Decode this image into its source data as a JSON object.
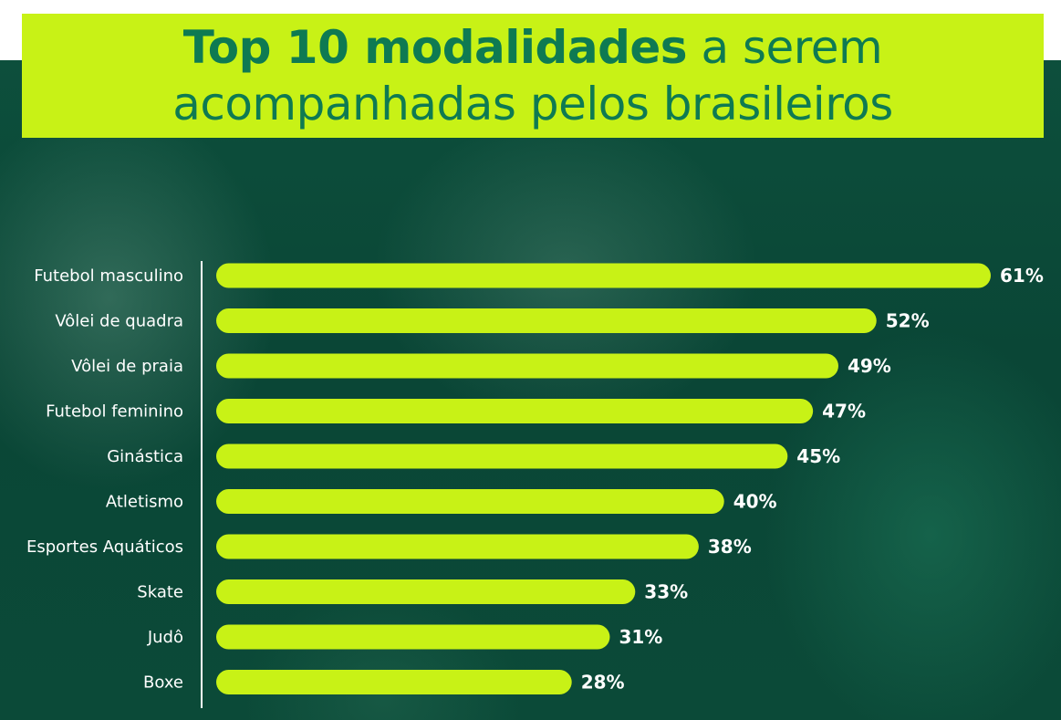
{
  "title": {
    "line1_bold": "Top 10 modalidades",
    "line1_rest": " a serem",
    "line2": "acompanhadas pelos brasileiros"
  },
  "colors": {
    "bar": "#c8f216",
    "background": "#0b4a38",
    "title_text": "#0e7a52",
    "labels": "#ffffff"
  },
  "chart_data": {
    "type": "bar",
    "orientation": "horizontal",
    "title": "Top 10 modalidades a serem acompanhadas pelos brasileiros",
    "categories": [
      "Futebol masculino",
      "Vôlei de quadra",
      "Vôlei de praia",
      "Futebol feminino",
      "Ginástica",
      "Atletismo",
      "Esportes Aquáticos",
      "Skate",
      "Judô",
      "Boxe"
    ],
    "values": [
      61,
      52,
      49,
      47,
      45,
      40,
      38,
      33,
      31,
      28
    ],
    "value_labels": [
      "61%",
      "52%",
      "49%",
      "47%",
      "45%",
      "40%",
      "38%",
      "33%",
      "31%",
      "28%"
    ],
    "xlim": [
      0,
      61
    ],
    "grid": false,
    "legend": "none"
  }
}
